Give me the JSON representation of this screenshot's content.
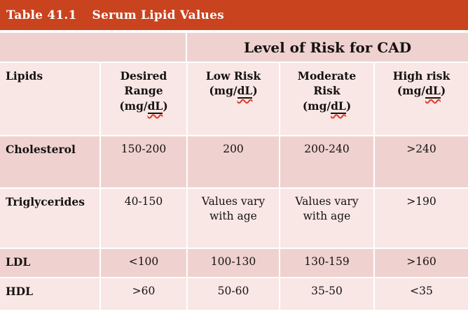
{
  "title": {
    "label": "Table 41.1",
    "text": "Serum Lipid Values"
  },
  "span_header": "Level of Risk for CAD",
  "columns": [
    {
      "name": "Lipids",
      "unit_prefix": "",
      "unit_dl": "",
      "unit_suffix": ""
    },
    {
      "name": "Desired Range",
      "unit_prefix": "(mg/",
      "unit_dl": "dL",
      "unit_suffix": ")"
    },
    {
      "name": "Low Risk",
      "unit_prefix": "(mg/",
      "unit_dl": "dL",
      "unit_suffix": ")"
    },
    {
      "name": "Moderate Risk",
      "unit_prefix": "(mg/",
      "unit_dl": "dL",
      "unit_suffix": ")"
    },
    {
      "name": "High risk",
      "unit_prefix": "(mg/",
      "unit_dl": "dL",
      "unit_suffix": ")"
    }
  ],
  "rows": [
    {
      "lipid": "Cholesterol",
      "values": [
        "150-200",
        "200",
        "200-240",
        ">240"
      ]
    },
    {
      "lipid": "Triglycerides",
      "values": [
        "40-150",
        "Values vary with age",
        "Values vary with age",
        ">190"
      ]
    },
    {
      "lipid": "LDL",
      "values": [
        "<100",
        "100-130",
        "130-159",
        ">160"
      ]
    },
    {
      "lipid": "HDL",
      "values": [
        ">60",
        "50-60",
        "35-50",
        "<35"
      ]
    }
  ],
  "colors": {
    "caption_bar": "#c9431f",
    "row_dark": "#efd2d0",
    "row_light": "#f8e7e5",
    "squiggle": "#e03a2a",
    "text": "#151210",
    "caption_text": "#ffffff"
  }
}
